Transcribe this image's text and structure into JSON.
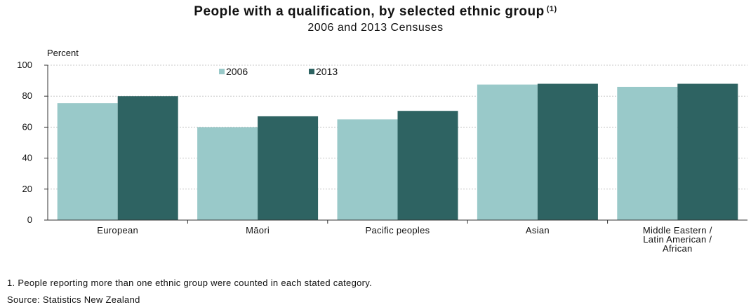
{
  "chart_data": {
    "type": "bar",
    "title": "People with a qualification, by selected ethnic group",
    "title_note": "(1)",
    "subtitle": "2006 and 2013 Censuses",
    "ylabel": "Percent",
    "xlabel": "",
    "ylim": [
      0,
      100
    ],
    "yticks": [
      "0",
      "20",
      "40",
      "60",
      "80",
      "100"
    ],
    "grid": true,
    "legend_position": "top-center",
    "categories": [
      [
        "European"
      ],
      [
        "Māori"
      ],
      [
        "Pacific peoples"
      ],
      [
        "Asian"
      ],
      [
        "Middle Eastern /",
        "Latin American /",
        "African"
      ]
    ],
    "series": [
      {
        "name": "2006",
        "color": "#99c9c9",
        "values": [
          75.5,
          60,
          65,
          87.5,
          86
        ]
      },
      {
        "name": "2013",
        "color": "#2e6362",
        "values": [
          80,
          67,
          70.5,
          88,
          88
        ]
      }
    ]
  },
  "footnote": "1. People reporting more than one ethnic group were counted in each stated category.",
  "source": "Source: Statistics New Zealand"
}
